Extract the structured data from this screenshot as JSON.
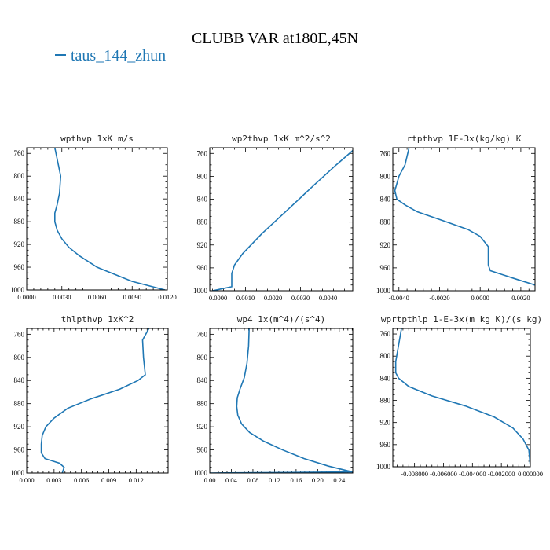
{
  "title": "CLUBB VAR at180E,45N",
  "legend": {
    "label": "taus_144_zhun",
    "color": "#1f77b4"
  },
  "series_color": "#1f77b4",
  "chart_data": [
    {
      "type": "line",
      "title": "wpthvp  1xK m/s",
      "xlim": [
        0.0,
        0.012
      ],
      "ylim": [
        1000,
        750
      ],
      "xticks": [
        "0.0000",
        "0.0030",
        "0.0060",
        "0.0090",
        "0.0120"
      ],
      "xtick_values": [
        0.0,
        0.003,
        0.006,
        0.009,
        0.012
      ],
      "yticks": [
        "760",
        "800",
        "840",
        "880",
        "920",
        "960",
        "1000"
      ],
      "ytick_values": [
        760,
        800,
        840,
        880,
        920,
        960,
        1000
      ],
      "x": [
        0.0024,
        0.0027,
        0.0029,
        0.0028,
        0.0026,
        0.0024,
        0.0024,
        0.0026,
        0.003,
        0.0036,
        0.0045,
        0.006,
        0.009,
        0.0118
      ],
      "y": [
        750,
        780,
        800,
        830,
        850,
        865,
        880,
        895,
        910,
        925,
        940,
        960,
        985,
        1000
      ]
    },
    {
      "type": "line",
      "title": "wp2thvp  1xK m^2/s^2",
      "xlim": [
        -0.0003,
        0.0049
      ],
      "ylim": [
        1000,
        750
      ],
      "xticks": [
        "0.0000",
        "0.0010",
        "0.0020",
        "0.0030",
        "0.0040"
      ],
      "xtick_values": [
        0.0,
        0.001,
        0.002,
        0.003,
        0.004
      ],
      "yticks": [
        "760",
        "800",
        "840",
        "880",
        "920",
        "960",
        "1000"
      ],
      "ytick_values": [
        760,
        800,
        840,
        880,
        920,
        960,
        1000
      ],
      "x": [
        0.0049,
        0.0043,
        0.0035,
        0.0025,
        0.0016,
        0.0009,
        0.0006,
        0.0005,
        0.0005,
        0.0005,
        0.0001,
        -0.0002
      ],
      "y": [
        755,
        780,
        815,
        860,
        900,
        935,
        955,
        970,
        985,
        993,
        997,
        1000
      ]
    },
    {
      "type": "line",
      "title": "rtpthvp  1E-3x(kg/kg) K",
      "xlim": [
        -0.0043,
        0.0027
      ],
      "ylim": [
        1000,
        750
      ],
      "xticks": [
        "-0.0040",
        "-0.0020",
        "0.0000",
        "0.0020"
      ],
      "xtick_values": [
        -0.004,
        -0.002,
        0.0,
        0.002
      ],
      "yticks": [
        "760",
        "800",
        "840",
        "880",
        "920",
        "960",
        "1000"
      ],
      "ytick_values": [
        760,
        800,
        840,
        880,
        920,
        960,
        1000
      ],
      "x": [
        -0.0035,
        -0.0037,
        -0.004,
        -0.0042,
        -0.0041,
        -0.0037,
        -0.0031,
        -0.0018,
        -0.0006,
        0.0,
        0.0004,
        0.0004,
        0.0004,
        0.0005,
        0.0018,
        0.0027
      ],
      "y": [
        750,
        780,
        800,
        825,
        840,
        850,
        862,
        878,
        893,
        905,
        923,
        940,
        955,
        965,
        980,
        990
      ]
    },
    {
      "type": "line",
      "title": "thlpthvp  1xK^2",
      "xlim": [
        0.0,
        0.0155
      ],
      "ylim": [
        1000,
        750
      ],
      "xticks": [
        "0.000",
        "0.003",
        "0.006",
        "0.009",
        "0.012"
      ],
      "xtick_values": [
        0.0,
        0.003,
        0.006,
        0.009,
        0.012
      ],
      "yticks": [
        "760",
        "800",
        "840",
        "880",
        "920",
        "960",
        "1000"
      ],
      "ytick_values": [
        760,
        800,
        840,
        880,
        920,
        960,
        1000
      ],
      "x": [
        0.0134,
        0.0127,
        0.0128,
        0.013,
        0.0122,
        0.0102,
        0.007,
        0.0045,
        0.003,
        0.0021,
        0.0017,
        0.0016,
        0.0016,
        0.002,
        0.0036,
        0.0041,
        0.0039
      ],
      "y": [
        750,
        770,
        800,
        830,
        840,
        855,
        872,
        888,
        905,
        920,
        935,
        950,
        965,
        975,
        983,
        990,
        1000
      ]
    },
    {
      "type": "line",
      "title": "wp4  1x(m^4)/(s^4)",
      "xlim": [
        0.0,
        0.265
      ],
      "ylim": [
        1000,
        750
      ],
      "xticks": [
        "0.00",
        "0.04",
        "0.08",
        "0.12",
        "0.16",
        "0.20",
        "0.24"
      ],
      "xtick_values": [
        0.0,
        0.04,
        0.08,
        0.12,
        0.16,
        0.2,
        0.24
      ],
      "yticks": [
        "760",
        "800",
        "840",
        "880",
        "920",
        "960",
        "1000"
      ],
      "ytick_values": [
        760,
        800,
        840,
        880,
        920,
        960,
        1000
      ],
      "x": [
        0.073,
        0.072,
        0.069,
        0.064,
        0.056,
        0.051,
        0.05,
        0.052,
        0.059,
        0.074,
        0.1,
        0.135,
        0.175,
        0.22,
        0.255,
        0.265,
        0.15,
        0.03,
        0.0
      ],
      "y": [
        750,
        780,
        810,
        835,
        855,
        870,
        885,
        900,
        915,
        930,
        945,
        960,
        975,
        988,
        996,
        998,
        999,
        999.7,
        1000
      ]
    },
    {
      "type": "line",
      "title": "wprtpthlp  1-E-3x(m kg K)/(s kg)",
      "xlim": [
        -0.0095,
        0.0
      ],
      "ylim": [
        1000,
        750
      ],
      "xticks": [
        "-0.008000",
        "-0.006000",
        "-0.004000",
        "-0.002000",
        "0.000000"
      ],
      "xtick_values": [
        -0.008,
        -0.006,
        -0.004,
        -0.002,
        0.0
      ],
      "yticks": [
        "760",
        "800",
        "840",
        "880",
        "920",
        "960",
        "1000"
      ],
      "ytick_values": [
        760,
        800,
        840,
        880,
        920,
        960,
        1000
      ],
      "x": [
        -0.0089,
        -0.0091,
        -0.0093,
        -0.0093,
        -0.0091,
        -0.0084,
        -0.0068,
        -0.0045,
        -0.0025,
        -0.0012,
        -0.0005,
        -0.0001,
        0.0
      ],
      "y": [
        750,
        780,
        810,
        830,
        840,
        855,
        872,
        890,
        910,
        930,
        950,
        970,
        1000
      ]
    }
  ]
}
